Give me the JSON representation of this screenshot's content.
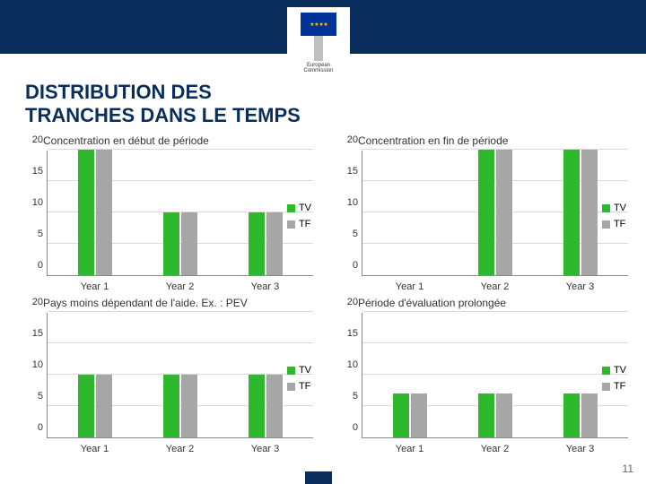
{
  "title_line1": "DISTRIBUTION DES",
  "title_line2": "TRANCHES DANS LE TEMPS",
  "page_number": "11",
  "colors": {
    "tv": "#2eb82e",
    "tf": "#a6a6a6",
    "header": "#0a2e5c",
    "grid": "#d9d9d9",
    "axis": "#888888"
  },
  "y": {
    "min": 0,
    "max": 20,
    "step": 5
  },
  "categories": [
    "Year 1",
    "Year 2",
    "Year 3"
  ],
  "legend": {
    "tv": "TV",
    "tf": "TF"
  },
  "charts": [
    {
      "title": "Concentration en début de période",
      "series": {
        "tv": [
          20,
          10,
          10
        ],
        "tf": [
          20,
          10,
          10
        ]
      }
    },
    {
      "title": "Concentration en fin de période",
      "series": {
        "tv": [
          0,
          20,
          20
        ],
        "tf": [
          0,
          20,
          20
        ]
      }
    },
    {
      "title": "Pays moins dépendant de l'aide. Ex. : PEV",
      "series": {
        "tv": [
          10,
          10,
          10
        ],
        "tf": [
          10,
          10,
          10
        ]
      }
    },
    {
      "title": "Période d'évaluation prolongée",
      "series": {
        "tv": [
          7,
          7,
          7
        ],
        "tf": [
          7,
          7,
          7
        ]
      }
    }
  ]
}
